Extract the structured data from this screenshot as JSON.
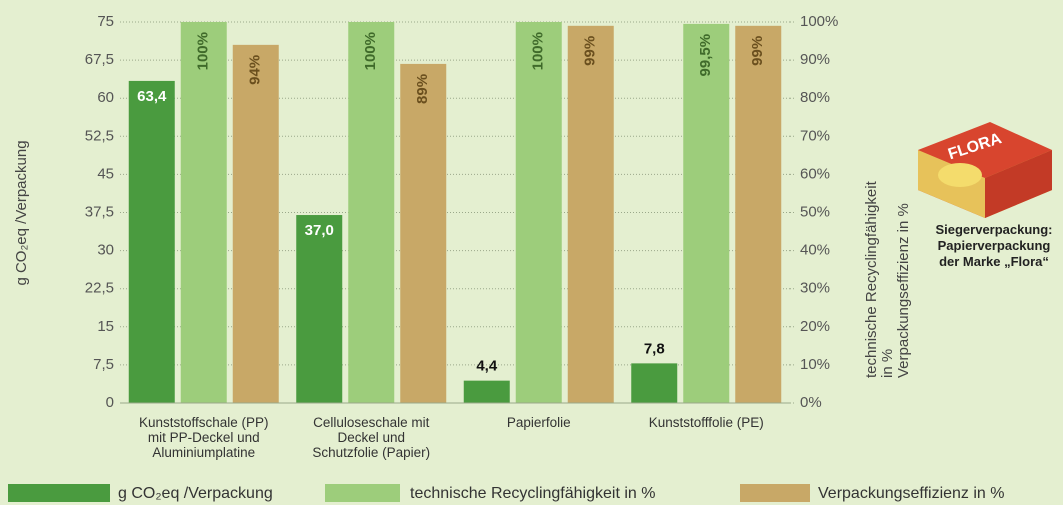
{
  "chart_data": {
    "type": "bar",
    "ylabel": "g CO₂eq /Verpackung",
    "y2label": "technische Recyclingfähigkeit in %\nVerpackungseffizienz in %",
    "annotation": "Siegerverpackung:\nPapierverpackung\nder Marke „Flora“",
    "categories": [
      "Kunststoffschale (PP)\nmit PP-Deckel und\nAluminiumplatine",
      "Celluloseschale mit\nDeckel und\nSchutzfolie (Papier)",
      "Papierfolie",
      "Kunststofffolie (PE)"
    ],
    "series": [
      {
        "name": "g CO₂eq /Verpackung",
        "color": "#4a9b3f",
        "values": [
          63.4,
          37.0,
          4.4,
          7.8
        ],
        "value_labels": [
          "63,4",
          "37,0",
          "4,4",
          "7,8"
        ]
      },
      {
        "name": "technische Recyclingfähigkeit in %",
        "color": "#9dcd7b",
        "axis": "y2",
        "values": [
          100,
          100,
          100,
          99.5
        ],
        "value_labels": [
          "100%",
          "100%",
          "100%",
          "99,5%"
        ]
      },
      {
        "name": "Verpackungseffizienz in %",
        "color": "#c8a867",
        "axis": "y2",
        "values": [
          94,
          89,
          99,
          99
        ],
        "value_labels": [
          "94%",
          "89%",
          "99%",
          "99%"
        ]
      }
    ],
    "ylim": [
      0,
      75
    ],
    "yticks": [
      0,
      {
        "value": 7.5,
        "label": "7,5"
      },
      15,
      {
        "value": 22.5,
        "label": "22,5"
      },
      30,
      {
        "value": 37.5,
        "label": "37,5"
      },
      45,
      {
        "value": 52.5,
        "label": "52,5"
      },
      60,
      {
        "value": 67.5,
        "label": "67,5"
      },
      75
    ],
    "y2lim": [
      0,
      100
    ],
    "y2ticks": [
      {
        "value": 0,
        "label": "0%"
      },
      {
        "value": 10,
        "label": "10%"
      },
      {
        "value": 20,
        "label": "20%"
      },
      {
        "value": 30,
        "label": "30%"
      },
      {
        "value": 40,
        "label": "40%"
      },
      {
        "value": 50,
        "label": "50%"
      },
      {
        "value": 60,
        "label": "60%"
      },
      {
        "value": 70,
        "label": "70%"
      },
      {
        "value": 80,
        "label": "80%"
      },
      {
        "value": 90,
        "label": "90%"
      },
      {
        "value": 100,
        "label": "100%"
      }
    ],
    "grid": true
  }
}
